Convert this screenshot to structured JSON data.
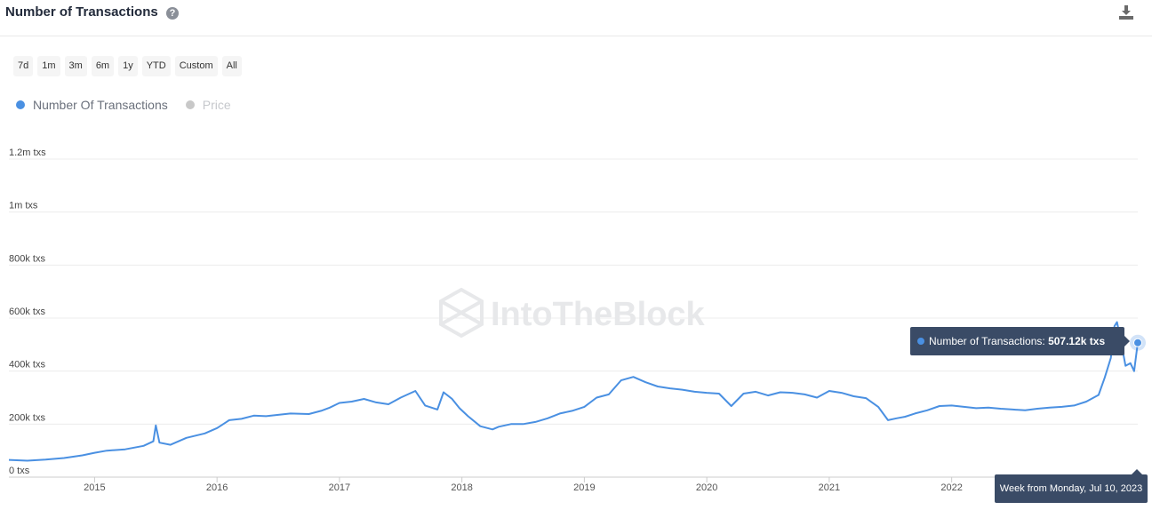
{
  "header": {
    "title": "Number of Transactions",
    "help_icon": "question-circle-icon",
    "download_icon": "download-icon"
  },
  "range_buttons": [
    "7d",
    "1m",
    "3m",
    "6m",
    "1y",
    "YTD",
    "Custom",
    "All"
  ],
  "legend": [
    {
      "label": "Number Of Transactions",
      "color": "#4a90e2",
      "active": true
    },
    {
      "label": "Price",
      "color": "#c8c8c8",
      "active": false
    }
  ],
  "watermark": "IntoTheBlock",
  "tooltip": {
    "label": "Number of Transactions:",
    "value": "507.12k txs",
    "date": "Week from Monday, Jul 10, 2023"
  },
  "chart_data": {
    "type": "line",
    "series": [
      {
        "name": "Number Of Transactions",
        "color": "#4a90e2",
        "points": [
          [
            2014.3,
            65000
          ],
          [
            2014.45,
            62000
          ],
          [
            2014.6,
            66000
          ],
          [
            2014.75,
            72000
          ],
          [
            2014.9,
            82000
          ],
          [
            2015.0,
            92000
          ],
          [
            2015.1,
            100000
          ],
          [
            2015.25,
            105000
          ],
          [
            2015.4,
            118000
          ],
          [
            2015.48,
            135000
          ],
          [
            2015.5,
            195000
          ],
          [
            2015.53,
            130000
          ],
          [
            2015.62,
            122000
          ],
          [
            2015.75,
            148000
          ],
          [
            2015.9,
            165000
          ],
          [
            2016.0,
            185000
          ],
          [
            2016.1,
            215000
          ],
          [
            2016.2,
            220000
          ],
          [
            2016.3,
            232000
          ],
          [
            2016.4,
            230000
          ],
          [
            2016.5,
            235000
          ],
          [
            2016.6,
            240000
          ],
          [
            2016.75,
            238000
          ],
          [
            2016.85,
            250000
          ],
          [
            2016.92,
            262000
          ],
          [
            2017.0,
            280000
          ],
          [
            2017.1,
            285000
          ],
          [
            2017.2,
            295000
          ],
          [
            2017.3,
            282000
          ],
          [
            2017.4,
            275000
          ],
          [
            2017.5,
            300000
          ],
          [
            2017.62,
            325000
          ],
          [
            2017.7,
            270000
          ],
          [
            2017.8,
            255000
          ],
          [
            2017.85,
            320000
          ],
          [
            2017.92,
            295000
          ],
          [
            2017.98,
            260000
          ],
          [
            2018.05,
            230000
          ],
          [
            2018.15,
            192000
          ],
          [
            2018.25,
            180000
          ],
          [
            2018.3,
            190000
          ],
          [
            2018.4,
            200000
          ],
          [
            2018.5,
            200000
          ],
          [
            2018.6,
            208000
          ],
          [
            2018.7,
            222000
          ],
          [
            2018.8,
            240000
          ],
          [
            2018.9,
            250000
          ],
          [
            2019.0,
            265000
          ],
          [
            2019.1,
            300000
          ],
          [
            2019.2,
            312000
          ],
          [
            2019.3,
            365000
          ],
          [
            2019.4,
            378000
          ],
          [
            2019.5,
            358000
          ],
          [
            2019.6,
            342000
          ],
          [
            2019.7,
            335000
          ],
          [
            2019.8,
            330000
          ],
          [
            2019.9,
            322000
          ],
          [
            2020.0,
            318000
          ],
          [
            2020.1,
            315000
          ],
          [
            2020.2,
            268000
          ],
          [
            2020.3,
            315000
          ],
          [
            2020.4,
            322000
          ],
          [
            2020.5,
            308000
          ],
          [
            2020.6,
            320000
          ],
          [
            2020.7,
            318000
          ],
          [
            2020.8,
            312000
          ],
          [
            2020.9,
            300000
          ],
          [
            2021.0,
            325000
          ],
          [
            2021.1,
            318000
          ],
          [
            2021.2,
            305000
          ],
          [
            2021.3,
            298000
          ],
          [
            2021.4,
            265000
          ],
          [
            2021.48,
            215000
          ],
          [
            2021.55,
            222000
          ],
          [
            2021.62,
            228000
          ],
          [
            2021.7,
            240000
          ],
          [
            2021.8,
            252000
          ],
          [
            2021.9,
            268000
          ],
          [
            2022.0,
            270000
          ],
          [
            2022.1,
            265000
          ],
          [
            2022.2,
            260000
          ],
          [
            2022.3,
            262000
          ],
          [
            2022.4,
            258000
          ],
          [
            2022.5,
            255000
          ],
          [
            2022.6,
            252000
          ],
          [
            2022.7,
            258000
          ],
          [
            2022.8,
            262000
          ],
          [
            2022.9,
            265000
          ],
          [
            2023.0,
            270000
          ],
          [
            2023.1,
            285000
          ],
          [
            2023.2,
            310000
          ],
          [
            2023.25,
            375000
          ],
          [
            2023.3,
            450000
          ],
          [
            2023.33,
            570000
          ],
          [
            2023.35,
            585000
          ],
          [
            2023.38,
            520000
          ],
          [
            2023.42,
            420000
          ],
          [
            2023.46,
            430000
          ],
          [
            2023.49,
            400000
          ],
          [
            2023.52,
            507120
          ]
        ]
      }
    ],
    "xlim": [
      2014.3,
      2023.52
    ],
    "ylim": [
      0,
      1200000
    ],
    "xlabel": "",
    "ylabel": "",
    "y_ticks": [
      {
        "value": 0,
        "label": "0 txs"
      },
      {
        "value": 200000,
        "label": "200k txs"
      },
      {
        "value": 400000,
        "label": "400k txs"
      },
      {
        "value": 600000,
        "label": "600k txs"
      },
      {
        "value": 800000,
        "label": "800k txs"
      },
      {
        "value": 1000000,
        "label": "1m txs"
      },
      {
        "value": 1200000,
        "label": "1.2m txs"
      }
    ],
    "x_ticks": [
      {
        "value": 2015,
        "label": "2015"
      },
      {
        "value": 2016,
        "label": "2016"
      },
      {
        "value": 2017,
        "label": "2017"
      },
      {
        "value": 2018,
        "label": "2018"
      },
      {
        "value": 2019,
        "label": "2019"
      },
      {
        "value": 2020,
        "label": "2020"
      },
      {
        "value": 2021,
        "label": "2021"
      },
      {
        "value": 2022,
        "label": "2022"
      }
    ],
    "grid": true,
    "legend_placement": "top-left"
  }
}
